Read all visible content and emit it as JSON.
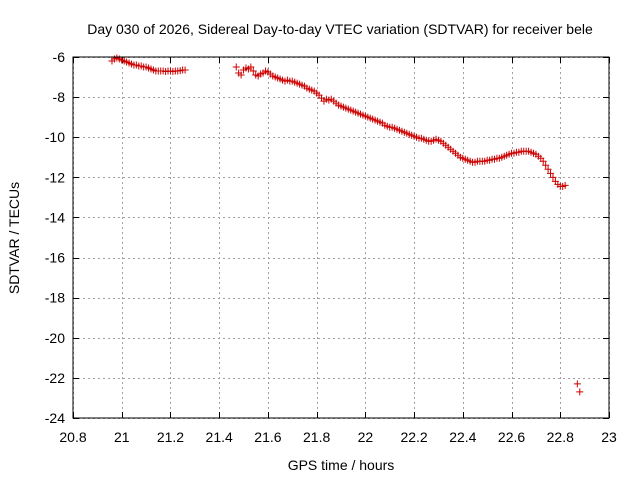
{
  "chart_data": {
    "type": "scatter",
    "title": "Day 030 of 2026, Sidereal Day-to-day VTEC variation (SDTVAR) for receiver bele",
    "xlabel": "GPS time / hours",
    "ylabel": "SDTVAR / TECUs",
    "xlim": [
      20.8,
      23
    ],
    "ylim": [
      -24,
      -6
    ],
    "xticks": [
      20.8,
      21,
      21.2,
      21.4,
      21.6,
      21.8,
      22,
      22.2,
      22.4,
      22.6,
      22.8,
      23
    ],
    "xtick_labels": [
      "20.8",
      "21",
      "21.2",
      "21.4",
      "21.6",
      "21.8",
      "22",
      "22.2",
      "22.4",
      "22.6",
      "22.8",
      "23"
    ],
    "yticks": [
      -6,
      -8,
      -10,
      -12,
      -14,
      -16,
      -18,
      -20,
      -22,
      -24
    ],
    "ytick_labels": [
      "-6",
      "-8",
      "-10",
      "-12",
      "-14",
      "-16",
      "-18",
      "-20",
      "-22",
      "-24"
    ],
    "grid": true,
    "marker": "+",
    "marker_color": "#cc0000",
    "series": [
      {
        "name": "SDTVAR",
        "points": [
          [
            20.96,
            -6.2
          ],
          [
            20.97,
            -6.1
          ],
          [
            20.98,
            -6.05
          ],
          [
            20.99,
            -6.1
          ],
          [
            21.0,
            -6.15
          ],
          [
            21.01,
            -6.2
          ],
          [
            21.02,
            -6.25
          ],
          [
            21.03,
            -6.3
          ],
          [
            21.04,
            -6.35
          ],
          [
            21.05,
            -6.4
          ],
          [
            21.06,
            -6.4
          ],
          [
            21.07,
            -6.45
          ],
          [
            21.08,
            -6.45
          ],
          [
            21.09,
            -6.5
          ],
          [
            21.1,
            -6.5
          ],
          [
            21.11,
            -6.55
          ],
          [
            21.12,
            -6.6
          ],
          [
            21.13,
            -6.65
          ],
          [
            21.14,
            -6.7
          ],
          [
            21.15,
            -6.7
          ],
          [
            21.16,
            -6.7
          ],
          [
            21.17,
            -6.7
          ],
          [
            21.18,
            -6.72
          ],
          [
            21.19,
            -6.7
          ],
          [
            21.2,
            -6.7
          ],
          [
            21.21,
            -6.72
          ],
          [
            21.22,
            -6.7
          ],
          [
            21.23,
            -6.7
          ],
          [
            21.24,
            -6.68
          ],
          [
            21.25,
            -6.65
          ],
          [
            21.26,
            -6.65
          ],
          [
            21.47,
            -6.5
          ],
          [
            21.48,
            -6.8
          ],
          [
            21.49,
            -6.9
          ],
          [
            21.5,
            -6.65
          ],
          [
            21.51,
            -6.55
          ],
          [
            21.52,
            -6.6
          ],
          [
            21.53,
            -6.5
          ],
          [
            21.54,
            -6.7
          ],
          [
            21.55,
            -6.9
          ],
          [
            21.56,
            -6.95
          ],
          [
            21.57,
            -6.85
          ],
          [
            21.58,
            -6.8
          ],
          [
            21.59,
            -6.7
          ],
          [
            21.6,
            -6.75
          ],
          [
            21.61,
            -6.85
          ],
          [
            21.62,
            -6.95
          ],
          [
            21.63,
            -7.0
          ],
          [
            21.64,
            -7.05
          ],
          [
            21.65,
            -7.1
          ],
          [
            21.66,
            -7.15
          ],
          [
            21.67,
            -7.2
          ],
          [
            21.68,
            -7.15
          ],
          [
            21.69,
            -7.2
          ],
          [
            21.7,
            -7.2
          ],
          [
            21.71,
            -7.25
          ],
          [
            21.72,
            -7.3
          ],
          [
            21.73,
            -7.35
          ],
          [
            21.74,
            -7.4
          ],
          [
            21.75,
            -7.45
          ],
          [
            21.76,
            -7.55
          ],
          [
            21.77,
            -7.6
          ],
          [
            21.78,
            -7.65
          ],
          [
            21.79,
            -7.7
          ],
          [
            21.8,
            -7.8
          ],
          [
            21.81,
            -7.9
          ],
          [
            21.82,
            -8.05
          ],
          [
            21.83,
            -8.2
          ],
          [
            21.84,
            -8.1
          ],
          [
            21.85,
            -8.15
          ],
          [
            21.86,
            -8.1
          ],
          [
            21.87,
            -8.2
          ],
          [
            21.88,
            -8.3
          ],
          [
            21.89,
            -8.4
          ],
          [
            21.9,
            -8.45
          ],
          [
            21.91,
            -8.5
          ],
          [
            21.92,
            -8.55
          ],
          [
            21.93,
            -8.6
          ],
          [
            21.94,
            -8.65
          ],
          [
            21.95,
            -8.7
          ],
          [
            21.96,
            -8.75
          ],
          [
            21.97,
            -8.8
          ],
          [
            21.98,
            -8.85
          ],
          [
            21.99,
            -8.9
          ],
          [
            22.0,
            -8.95
          ],
          [
            22.01,
            -9.0
          ],
          [
            22.02,
            -9.05
          ],
          [
            22.03,
            -9.1
          ],
          [
            22.04,
            -9.15
          ],
          [
            22.05,
            -9.2
          ],
          [
            22.06,
            -9.25
          ],
          [
            22.07,
            -9.3
          ],
          [
            22.08,
            -9.4
          ],
          [
            22.09,
            -9.45
          ],
          [
            22.1,
            -9.5
          ],
          [
            22.11,
            -9.5
          ],
          [
            22.12,
            -9.55
          ],
          [
            22.13,
            -9.6
          ],
          [
            22.14,
            -9.65
          ],
          [
            22.15,
            -9.7
          ],
          [
            22.16,
            -9.75
          ],
          [
            22.17,
            -9.8
          ],
          [
            22.18,
            -9.85
          ],
          [
            22.19,
            -9.9
          ],
          [
            22.2,
            -9.95
          ],
          [
            22.21,
            -10.0
          ],
          [
            22.22,
            -10.05
          ],
          [
            22.23,
            -10.05
          ],
          [
            22.24,
            -10.1
          ],
          [
            22.25,
            -10.15
          ],
          [
            22.26,
            -10.2
          ],
          [
            22.27,
            -10.2
          ],
          [
            22.28,
            -10.15
          ],
          [
            22.29,
            -10.1
          ],
          [
            22.3,
            -10.15
          ],
          [
            22.31,
            -10.2
          ],
          [
            22.32,
            -10.3
          ],
          [
            22.33,
            -10.4
          ],
          [
            22.34,
            -10.5
          ],
          [
            22.35,
            -10.6
          ],
          [
            22.36,
            -10.7
          ],
          [
            22.37,
            -10.8
          ],
          [
            22.38,
            -10.9
          ],
          [
            22.39,
            -11.0
          ],
          [
            22.4,
            -11.05
          ],
          [
            22.41,
            -11.1
          ],
          [
            22.42,
            -11.15
          ],
          [
            22.43,
            -11.2
          ],
          [
            22.44,
            -11.25
          ],
          [
            22.45,
            -11.25
          ],
          [
            22.46,
            -11.2
          ],
          [
            22.47,
            -11.2
          ],
          [
            22.48,
            -11.2
          ],
          [
            22.49,
            -11.2
          ],
          [
            22.5,
            -11.15
          ],
          [
            22.51,
            -11.15
          ],
          [
            22.52,
            -11.1
          ],
          [
            22.53,
            -11.1
          ],
          [
            22.54,
            -11.05
          ],
          [
            22.55,
            -11.05
          ],
          [
            22.56,
            -11.0
          ],
          [
            22.57,
            -10.95
          ],
          [
            22.58,
            -10.9
          ],
          [
            22.59,
            -10.85
          ],
          [
            22.6,
            -10.8
          ],
          [
            22.61,
            -10.8
          ],
          [
            22.62,
            -10.75
          ],
          [
            22.63,
            -10.75
          ],
          [
            22.64,
            -10.7
          ],
          [
            22.65,
            -10.7
          ],
          [
            22.66,
            -10.7
          ],
          [
            22.67,
            -10.7
          ],
          [
            22.68,
            -10.75
          ],
          [
            22.69,
            -10.8
          ],
          [
            22.7,
            -10.85
          ],
          [
            22.71,
            -10.95
          ],
          [
            22.72,
            -11.05
          ],
          [
            22.73,
            -11.2
          ],
          [
            22.74,
            -11.4
          ],
          [
            22.75,
            -11.6
          ],
          [
            22.76,
            -11.8
          ],
          [
            22.77,
            -12.0
          ],
          [
            22.78,
            -12.2
          ],
          [
            22.79,
            -12.35
          ],
          [
            22.8,
            -12.45
          ],
          [
            22.81,
            -12.45
          ],
          [
            22.82,
            -12.4
          ],
          [
            22.87,
            -22.3
          ],
          [
            22.88,
            -22.7
          ]
        ]
      }
    ]
  }
}
